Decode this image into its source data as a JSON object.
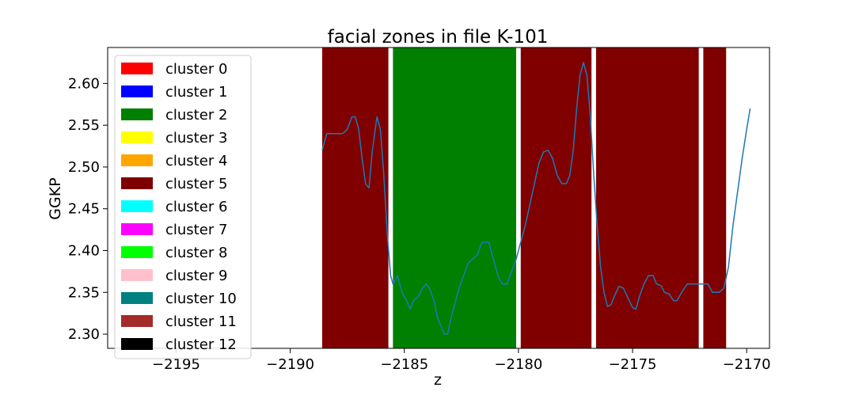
{
  "chart_data": {
    "type": "line",
    "title": "facial zones in file K-101",
    "xlabel": "z",
    "ylabel": "GGKP",
    "xlim": [
      -2198,
      -2169
    ],
    "ylim": [
      2.283,
      2.643
    ],
    "xticks": [
      -2195,
      -2190,
      -2185,
      -2180,
      -2175,
      -2170
    ],
    "xtick_labels": [
      "−2195",
      "−2190",
      "−2185",
      "−2180",
      "−2175",
      "−2170"
    ],
    "yticks": [
      2.3,
      2.35,
      2.4,
      2.45,
      2.5,
      2.55,
      2.6
    ],
    "ytick_labels": [
      "2.30",
      "2.35",
      "2.40",
      "2.45",
      "2.50",
      "2.55",
      "2.60"
    ],
    "grid": false,
    "legend_position": "upper-left",
    "legend": [
      {
        "label": "cluster 0",
        "color": "#ff0000"
      },
      {
        "label": "cluster 1",
        "color": "#0000ff"
      },
      {
        "label": "cluster 2",
        "color": "#008000"
      },
      {
        "label": "cluster 3",
        "color": "#ffff00"
      },
      {
        "label": "cluster 4",
        "color": "#ffa500"
      },
      {
        "label": "cluster 5",
        "color": "#800000"
      },
      {
        "label": "cluster 6",
        "color": "#00ffff"
      },
      {
        "label": "cluster 7",
        "color": "#ff00ff"
      },
      {
        "label": "cluster 8",
        "color": "#00ff00"
      },
      {
        "label": "cluster 9",
        "color": "#ffc0cb"
      },
      {
        "label": "cluster 10",
        "color": "#008080"
      },
      {
        "label": "cluster 11",
        "color": "#a52a2a"
      },
      {
        "label": "cluster 12",
        "color": "#000000"
      }
    ],
    "zones": [
      {
        "x0": -2188.6,
        "x1": -2185.7,
        "cluster": 5,
        "color": "#800000"
      },
      {
        "x0": -2185.5,
        "x1": -2180.1,
        "cluster": 2,
        "color": "#008000"
      },
      {
        "x0": -2179.9,
        "x1": -2176.8,
        "cluster": 5,
        "color": "#800000"
      },
      {
        "x0": -2176.6,
        "x1": -2172.1,
        "cluster": 5,
        "color": "#800000"
      },
      {
        "x0": -2171.9,
        "x1": -2170.9,
        "cluster": 5,
        "color": "#800000"
      }
    ],
    "series": [
      {
        "color": "#1f77b4",
        "points": [
          [
            -2188.6,
            2.52
          ],
          [
            -2188.4,
            2.54
          ],
          [
            -2188.0,
            2.54
          ],
          [
            -2187.7,
            2.54
          ],
          [
            -2187.5,
            2.545
          ],
          [
            -2187.3,
            2.56
          ],
          [
            -2187.15,
            2.56
          ],
          [
            -2187.0,
            2.545
          ],
          [
            -2186.85,
            2.51
          ],
          [
            -2186.7,
            2.48
          ],
          [
            -2186.55,
            2.475
          ],
          [
            -2186.4,
            2.52
          ],
          [
            -2186.2,
            2.56
          ],
          [
            -2186.05,
            2.545
          ],
          [
            -2185.9,
            2.49
          ],
          [
            -2185.75,
            2.42
          ],
          [
            -2185.6,
            2.37
          ],
          [
            -2185.5,
            2.36
          ],
          [
            -2185.3,
            2.37
          ],
          [
            -2185.1,
            2.35
          ],
          [
            -2184.9,
            2.34
          ],
          [
            -2184.75,
            2.33
          ],
          [
            -2184.6,
            2.34
          ],
          [
            -2184.4,
            2.345
          ],
          [
            -2184.2,
            2.355
          ],
          [
            -2184.05,
            2.36
          ],
          [
            -2183.9,
            2.355
          ],
          [
            -2183.7,
            2.34
          ],
          [
            -2183.55,
            2.32
          ],
          [
            -2183.4,
            2.31
          ],
          [
            -2183.25,
            2.3
          ],
          [
            -2183.1,
            2.3
          ],
          [
            -2182.95,
            2.32
          ],
          [
            -2182.75,
            2.34
          ],
          [
            -2182.6,
            2.355
          ],
          [
            -2182.4,
            2.37
          ],
          [
            -2182.2,
            2.385
          ],
          [
            -2182.0,
            2.39
          ],
          [
            -2181.8,
            2.395
          ],
          [
            -2181.6,
            2.41
          ],
          [
            -2181.3,
            2.41
          ],
          [
            -2181.1,
            2.39
          ],
          [
            -2180.9,
            2.37
          ],
          [
            -2180.7,
            2.36
          ],
          [
            -2180.5,
            2.36
          ],
          [
            -2180.3,
            2.375
          ],
          [
            -2180.1,
            2.39
          ],
          [
            -2179.9,
            2.41
          ],
          [
            -2179.7,
            2.43
          ],
          [
            -2179.5,
            2.455
          ],
          [
            -2179.3,
            2.48
          ],
          [
            -2179.1,
            2.505
          ],
          [
            -2178.9,
            2.518
          ],
          [
            -2178.7,
            2.52
          ],
          [
            -2178.5,
            2.51
          ],
          [
            -2178.3,
            2.49
          ],
          [
            -2178.1,
            2.48
          ],
          [
            -2177.9,
            2.48
          ],
          [
            -2177.75,
            2.49
          ],
          [
            -2177.6,
            2.52
          ],
          [
            -2177.45,
            2.57
          ],
          [
            -2177.3,
            2.61
          ],
          [
            -2177.15,
            2.625
          ],
          [
            -2177.0,
            2.61
          ],
          [
            -2176.85,
            2.56
          ],
          [
            -2176.7,
            2.49
          ],
          [
            -2176.55,
            2.43
          ],
          [
            -2176.4,
            2.38
          ],
          [
            -2176.25,
            2.35
          ],
          [
            -2176.1,
            2.333
          ],
          [
            -2175.95,
            2.335
          ],
          [
            -2175.8,
            2.345
          ],
          [
            -2175.6,
            2.357
          ],
          [
            -2175.4,
            2.355
          ],
          [
            -2175.2,
            2.343
          ],
          [
            -2175.0,
            2.332
          ],
          [
            -2174.85,
            2.33
          ],
          [
            -2174.7,
            2.345
          ],
          [
            -2174.5,
            2.36
          ],
          [
            -2174.3,
            2.37
          ],
          [
            -2174.1,
            2.37
          ],
          [
            -2173.95,
            2.36
          ],
          [
            -2173.75,
            2.358
          ],
          [
            -2173.6,
            2.35
          ],
          [
            -2173.4,
            2.348
          ],
          [
            -2173.2,
            2.34
          ],
          [
            -2173.05,
            2.34
          ],
          [
            -2172.85,
            2.35
          ],
          [
            -2172.6,
            2.36
          ],
          [
            -2172.3,
            2.36
          ],
          [
            -2172.0,
            2.36
          ],
          [
            -2171.7,
            2.36
          ],
          [
            -2171.5,
            2.35
          ],
          [
            -2171.2,
            2.35
          ],
          [
            -2171.0,
            2.355
          ],
          [
            -2170.8,
            2.38
          ],
          [
            -2170.6,
            2.43
          ],
          [
            -2170.4,
            2.47
          ],
          [
            -2170.2,
            2.51
          ],
          [
            -2170.0,
            2.545
          ],
          [
            -2169.85,
            2.57
          ]
        ]
      }
    ]
  }
}
